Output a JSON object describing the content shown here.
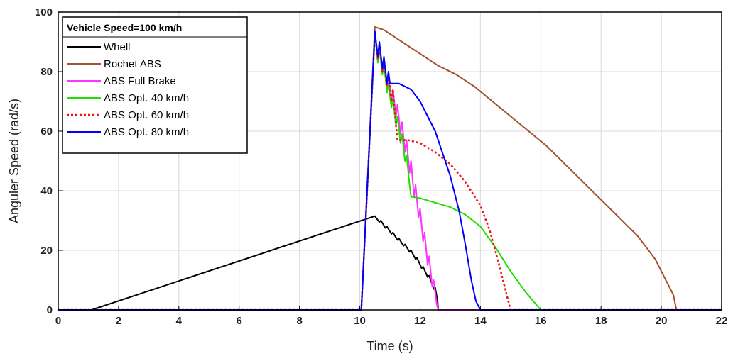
{
  "chart_data": {
    "type": "line",
    "title": "",
    "xlabel": "Time (s)",
    "ylabel": "Anguler Speed (rad/s)",
    "xlim": [
      0,
      22
    ],
    "ylim": [
      0,
      100
    ],
    "xticks": [
      0,
      2,
      4,
      6,
      8,
      10,
      12,
      14,
      16,
      18,
      20,
      22
    ],
    "yticks": [
      0,
      20,
      40,
      60,
      80,
      100
    ],
    "grid": true,
    "legend": {
      "title": "Vehicle Speed=100 km/h",
      "position": "top-left"
    },
    "series": [
      {
        "name": "Whell",
        "color": "#000000",
        "style": "solid",
        "points": [
          [
            0,
            0
          ],
          [
            1.1,
            0
          ],
          [
            10.5,
            31.5
          ],
          [
            10.65,
            29.5
          ],
          [
            10.7,
            30
          ],
          [
            10.85,
            27.5
          ],
          [
            10.9,
            28
          ],
          [
            11.05,
            25.5
          ],
          [
            11.1,
            26
          ],
          [
            11.25,
            23.5
          ],
          [
            11.3,
            24
          ],
          [
            11.45,
            21.5
          ],
          [
            11.5,
            22
          ],
          [
            11.65,
            19.5
          ],
          [
            11.7,
            20
          ],
          [
            11.85,
            17
          ],
          [
            11.9,
            17.5
          ],
          [
            12.05,
            14
          ],
          [
            12.1,
            14.5
          ],
          [
            12.25,
            11
          ],
          [
            12.3,
            11.5
          ],
          [
            12.45,
            7
          ],
          [
            12.5,
            7.5
          ],
          [
            12.58,
            3
          ],
          [
            12.6,
            0
          ],
          [
            22,
            0
          ]
        ]
      },
      {
        "name": "Rochet ABS",
        "color": "#a0522d",
        "style": "solid",
        "points": [
          [
            0,
            0
          ],
          [
            10.05,
            0
          ],
          [
            10.5,
            95
          ],
          [
            10.8,
            94
          ],
          [
            11.1,
            92
          ],
          [
            11.4,
            90
          ],
          [
            11.7,
            88
          ],
          [
            12.0,
            86
          ],
          [
            12.3,
            84
          ],
          [
            12.6,
            82
          ],
          [
            12.9,
            80.5
          ],
          [
            13.2,
            79
          ],
          [
            13.5,
            77
          ],
          [
            13.8,
            75
          ],
          [
            14.1,
            72.5
          ],
          [
            14.4,
            70
          ],
          [
            14.7,
            67.5
          ],
          [
            15.0,
            65
          ],
          [
            15.3,
            62.5
          ],
          [
            15.6,
            60
          ],
          [
            15.9,
            57.5
          ],
          [
            16.2,
            55
          ],
          [
            16.5,
            52
          ],
          [
            16.8,
            49
          ],
          [
            17.1,
            46
          ],
          [
            17.4,
            43
          ],
          [
            17.7,
            40
          ],
          [
            18.0,
            37
          ],
          [
            18.3,
            34
          ],
          [
            18.6,
            31
          ],
          [
            18.9,
            28
          ],
          [
            19.2,
            25
          ],
          [
            19.5,
            21
          ],
          [
            19.8,
            17
          ],
          [
            20.1,
            11
          ],
          [
            20.4,
            5
          ],
          [
            20.5,
            0
          ],
          [
            22,
            0
          ]
        ]
      },
      {
        "name": "ABS Full Brake",
        "color": "#ff33ff",
        "style": "solid",
        "points": [
          [
            0,
            0
          ],
          [
            10.05,
            0
          ],
          [
            10.5,
            93.5
          ],
          [
            10.6,
            84
          ],
          [
            10.65,
            89
          ],
          [
            10.75,
            80
          ],
          [
            10.8,
            84
          ],
          [
            10.9,
            75
          ],
          [
            10.95,
            79
          ],
          [
            11.05,
            70
          ],
          [
            11.1,
            74
          ],
          [
            11.2,
            65
          ],
          [
            11.25,
            69
          ],
          [
            11.35,
            59
          ],
          [
            11.4,
            63
          ],
          [
            11.5,
            53
          ],
          [
            11.55,
            57
          ],
          [
            11.65,
            46
          ],
          [
            11.7,
            50
          ],
          [
            11.8,
            38
          ],
          [
            11.85,
            42
          ],
          [
            11.95,
            31
          ],
          [
            12.0,
            34
          ],
          [
            12.1,
            23
          ],
          [
            12.15,
            26
          ],
          [
            12.25,
            15
          ],
          [
            12.3,
            18
          ],
          [
            12.4,
            8
          ],
          [
            12.45,
            10
          ],
          [
            12.55,
            2
          ],
          [
            12.6,
            0
          ],
          [
            22,
            0
          ]
        ]
      },
      {
        "name": "ABS Opt. 40 km/h",
        "color": "#22dd00",
        "style": "solid",
        "points": [
          [
            0,
            0
          ],
          [
            10.05,
            0
          ],
          [
            10.5,
            93
          ],
          [
            10.6,
            83
          ],
          [
            10.65,
            88
          ],
          [
            10.75,
            79
          ],
          [
            10.8,
            83
          ],
          [
            10.9,
            73
          ],
          [
            10.95,
            76
          ],
          [
            11.05,
            68
          ],
          [
            11.1,
            71
          ],
          [
            11.2,
            62
          ],
          [
            11.25,
            65
          ],
          [
            11.35,
            56
          ],
          [
            11.4,
            59
          ],
          [
            11.5,
            50
          ],
          [
            11.55,
            52
          ],
          [
            11.65,
            42
          ],
          [
            11.7,
            38
          ],
          [
            12.0,
            37.5
          ],
          [
            12.5,
            36
          ],
          [
            13.0,
            34.5
          ],
          [
            13.5,
            32
          ],
          [
            14.0,
            28
          ],
          [
            14.5,
            21
          ],
          [
            15.0,
            13
          ],
          [
            15.5,
            6
          ],
          [
            16.0,
            0
          ],
          [
            22,
            0
          ]
        ]
      },
      {
        "name": "ABS Opt. 60 km/h",
        "color": "#ee1111",
        "style": "dotted",
        "points": [
          [
            0,
            0
          ],
          [
            10.05,
            0
          ],
          [
            10.5,
            93
          ],
          [
            10.6,
            84
          ],
          [
            10.65,
            89
          ],
          [
            10.75,
            80
          ],
          [
            10.8,
            84
          ],
          [
            10.9,
            75
          ],
          [
            10.95,
            79
          ],
          [
            11.05,
            70
          ],
          [
            11.1,
            74
          ],
          [
            11.2,
            62
          ],
          [
            11.25,
            57
          ],
          [
            11.6,
            57
          ],
          [
            12.0,
            56
          ],
          [
            12.5,
            53
          ],
          [
            13.0,
            49
          ],
          [
            13.5,
            43
          ],
          [
            14.0,
            35
          ],
          [
            14.3,
            27
          ],
          [
            14.6,
            16
          ],
          [
            14.85,
            6
          ],
          [
            15.0,
            0
          ],
          [
            22,
            0
          ]
        ]
      },
      {
        "name": "ABS Opt. 80 km/h",
        "color": "#0000ff",
        "style": "solid",
        "points": [
          [
            0,
            0
          ],
          [
            10.05,
            0
          ],
          [
            10.5,
            93.5
          ],
          [
            10.6,
            85
          ],
          [
            10.65,
            90
          ],
          [
            10.75,
            81
          ],
          [
            10.8,
            85
          ],
          [
            10.9,
            76
          ],
          [
            10.95,
            80
          ],
          [
            11.0,
            76
          ],
          [
            11.3,
            76
          ],
          [
            11.7,
            74
          ],
          [
            12.0,
            70
          ],
          [
            12.5,
            60
          ],
          [
            13.0,
            45
          ],
          [
            13.3,
            33
          ],
          [
            13.5,
            22
          ],
          [
            13.7,
            10
          ],
          [
            13.85,
            3
          ],
          [
            14.0,
            0
          ],
          [
            22,
            0
          ]
        ]
      }
    ]
  }
}
